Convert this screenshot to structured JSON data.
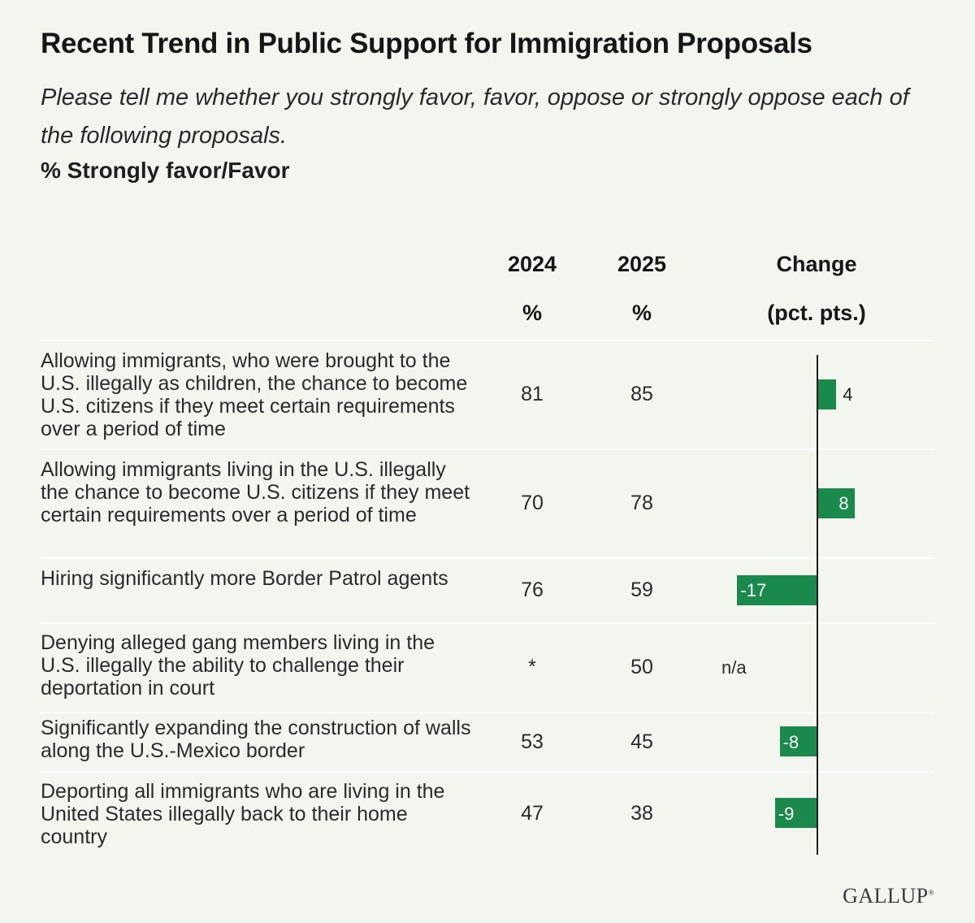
{
  "title": "Recent Trend in Public Support for Immigration Proposals",
  "subtitle": "Please tell me whether you strongly favor, favor, oppose or strongly oppose each of the following proposals.",
  "measure": "% Strongly favor/Favor",
  "columns": {
    "y2024": "2024",
    "y2024_unit": "%",
    "y2025": "2025",
    "y2025_unit": "%",
    "change": "Change",
    "change_unit": "(pct. pts.)"
  },
  "logo": "GALLUP",
  "colors": {
    "bar": "#1a8a4c",
    "background": "#f2f6ef"
  },
  "chart_data": {
    "type": "bar",
    "orientation": "horizontal",
    "title": "Recent Trend in Public Support for Immigration Proposals",
    "categories": [
      "Allowing immigrants, who were brought to the U.S. illegally as children, the chance to become U.S. citizens if they meet certain requirements over a period of time",
      "Allowing immigrants living in the U.S. illegally the chance to become U.S. citizens if they meet certain requirements over a period of time",
      "Hiring significantly more Border Patrol agents",
      "Denying alleged gang members living in the U.S. illegally the ability to challenge their deportation in court",
      "Significantly expanding the construction of walls along the U.S.-Mexico border",
      "Deporting all immigrants who are living in the United States illegally back to their home country"
    ],
    "y2024": [
      "81",
      "70",
      "76",
      "*",
      "53",
      "47"
    ],
    "y2025": [
      "85",
      "78",
      "59",
      "50",
      "45",
      "38"
    ],
    "change": [
      4,
      8,
      -17,
      null,
      -8,
      -9
    ],
    "change_labels": [
      "4",
      "8",
      "-17",
      "n/a",
      "-8",
      "-9"
    ],
    "xlim": [
      -20,
      20
    ]
  }
}
